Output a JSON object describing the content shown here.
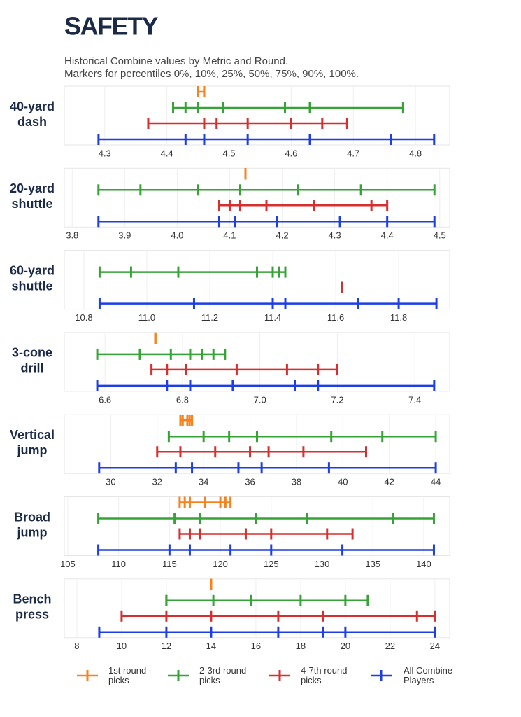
{
  "title": "SAFETY",
  "subtitle_lines": [
    "Historical Combine values by Metric and Round.",
    "Markers for percentiles 0%, 10%, 25%, 50%, 75%, 90%, 100%."
  ],
  "legend": [
    {
      "name": "1st round picks",
      "color": "#f7821e"
    },
    {
      "name": "2-3rd round picks",
      "color": "#35a336"
    },
    {
      "name": "4-7th round picks",
      "color": "#d62f2f"
    },
    {
      "name": "All Combine Players",
      "color": "#1d3ee6"
    }
  ],
  "chart_data": [
    {
      "type": "percentile-range",
      "title_lines": [
        "40-yard",
        "dash"
      ],
      "xlim": [
        4.235,
        4.855
      ],
      "xticks": [
        4.3,
        4.4,
        4.5,
        4.6,
        4.7,
        4.8
      ],
      "grid": true,
      "series": [
        {
          "values": [
            4.45,
            4.45,
            4.45,
            4.45,
            4.46,
            4.46,
            4.46
          ]
        },
        {
          "values": [
            4.41,
            4.43,
            4.45,
            4.49,
            4.59,
            4.63,
            4.78
          ]
        },
        {
          "values": [
            4.37,
            4.46,
            4.48,
            4.53,
            4.6,
            4.65,
            4.69
          ]
        },
        {
          "values": [
            4.29,
            4.43,
            4.46,
            4.53,
            4.63,
            4.76,
            4.83
          ]
        }
      ]
    },
    {
      "type": "percentile-range",
      "title_lines": [
        "20-yard",
        "shuttle"
      ],
      "xlim": [
        3.785,
        4.519
      ],
      "xticks": [
        3.8,
        3.9,
        {
          "value": 4,
          "label": "4.0"
        },
        4.1,
        4.2,
        4.3,
        4.4,
        4.5
      ],
      "grid": true,
      "series": [
        {
          "values": [
            4.13,
            4.13,
            4.13,
            4.13,
            4.13,
            4.13,
            4.13
          ]
        },
        {
          "values": [
            3.85,
            3.93,
            4.04,
            4.12,
            4.23,
            4.35,
            4.49
          ]
        },
        {
          "values": [
            4.08,
            4.1,
            4.12,
            4.17,
            4.26,
            4.37,
            4.4
          ]
        },
        {
          "values": [
            3.85,
            4.08,
            4.11,
            4.19,
            4.31,
            4.4,
            4.49
          ]
        }
      ]
    },
    {
      "type": "percentile-range",
      "title_lines": [
        "60-yard",
        "shuttle"
      ],
      "xlim": [
        10.738,
        11.962
      ],
      "xticks": [
        10.8,
        {
          "value": 11,
          "label": "11.0"
        },
        11.2,
        11.4,
        11.6,
        11.8
      ],
      "grid": true,
      "series": [
        {
          "values": null
        },
        {
          "values": [
            10.85,
            10.95,
            11.1,
            11.35,
            11.4,
            11.42,
            11.44
          ]
        },
        {
          "values": [
            11.62,
            11.62,
            11.62,
            11.62,
            11.62,
            11.62,
            11.62
          ]
        },
        {
          "values": [
            10.85,
            11.15,
            11.4,
            11.44,
            11.67,
            11.8,
            11.92
          ]
        }
      ]
    },
    {
      "type": "percentile-range",
      "title_lines": [
        "3-cone",
        "drill"
      ],
      "xlim": [
        6.495,
        7.49
      ],
      "xticks": [
        6.6,
        6.8,
        {
          "value": 7,
          "label": "7.0"
        },
        7.2,
        7.4
      ],
      "grid": true,
      "series": [
        {
          "values": [
            6.73,
            6.73,
            6.73,
            6.73,
            6.73,
            6.73,
            6.73
          ]
        },
        {
          "values": [
            6.58,
            6.69,
            6.77,
            6.82,
            6.85,
            6.88,
            6.91
          ]
        },
        {
          "values": [
            6.72,
            6.76,
            6.81,
            6.94,
            7.07,
            7.15,
            7.2
          ]
        },
        {
          "values": [
            6.58,
            6.76,
            6.82,
            6.93,
            7.09,
            7.15,
            7.45
          ]
        }
      ]
    },
    {
      "type": "percentile-range",
      "title_lines": [
        "Vertical",
        "jump"
      ],
      "xlim": [
        28,
        44.6
      ],
      "xticks": [
        30,
        32,
        34,
        36,
        38,
        40,
        42,
        44
      ],
      "grid": true,
      "series": [
        {
          "values": [
            33,
            33.1,
            33.3,
            33.4,
            33.5,
            33.5,
            33.5
          ]
        },
        {
          "values": [
            32.5,
            34,
            35.1,
            36.3,
            39.5,
            41.7,
            44
          ]
        },
        {
          "values": [
            32,
            33,
            34.5,
            36,
            36.8,
            38.3,
            41
          ]
        },
        {
          "values": [
            29.5,
            32.8,
            33.5,
            35.5,
            36.5,
            39.4,
            44
          ]
        }
      ]
    },
    {
      "type": "percentile-range",
      "title_lines": [
        "Broad",
        "jump"
      ],
      "xlim": [
        104.66,
        142.55
      ],
      "xticks": [
        105,
        110,
        115,
        120,
        125,
        130,
        135,
        140
      ],
      "grid": true,
      "series": [
        {
          "values": [
            116,
            116.5,
            117,
            118.5,
            120,
            120.5,
            121
          ]
        },
        {
          "values": [
            108,
            115.5,
            118,
            123.5,
            128.5,
            137,
            141
          ]
        },
        {
          "values": [
            116,
            117,
            118,
            122.5,
            125,
            130.5,
            133
          ]
        },
        {
          "values": [
            108,
            115,
            117,
            121,
            125,
            132,
            141
          ]
        }
      ]
    },
    {
      "type": "percentile-range",
      "title_lines": [
        "Bench",
        "press"
      ],
      "xlim": [
        7.44,
        24.66
      ],
      "xticks": [
        8,
        10,
        12,
        14,
        16,
        18,
        20,
        22,
        24
      ],
      "grid": true,
      "series": [
        {
          "values": [
            14,
            14,
            14,
            14,
            14,
            14,
            14
          ]
        },
        {
          "values": [
            12,
            12,
            14.1,
            15.8,
            18,
            20,
            21
          ]
        },
        {
          "values": [
            10,
            12,
            14,
            17,
            19,
            23.2,
            24
          ]
        },
        {
          "values": [
            9,
            12,
            14,
            17,
            19,
            20,
            24
          ]
        }
      ]
    }
  ]
}
